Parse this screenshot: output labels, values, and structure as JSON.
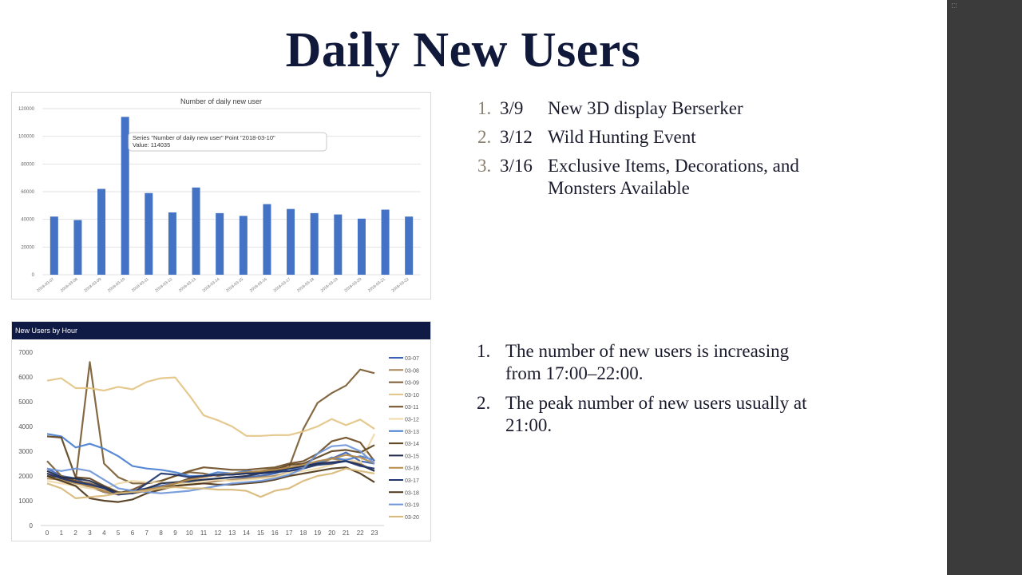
{
  "slide": {
    "title": "Daily New Users",
    "events": [
      {
        "num": "1.",
        "date": "3/9",
        "text": "New 3D display Berserker"
      },
      {
        "num": "2.",
        "date": "3/12",
        "text": "Wild Hunting Event"
      },
      {
        "num": "3.",
        "date": "3/16",
        "text": "Exclusive Items, Decorations, and Monsters Available"
      }
    ],
    "findings": [
      {
        "num": "1.",
        "text": "The number of new users is increasing from 17:00–22:00."
      },
      {
        "num": "2.",
        "text": "The peak number of new users usually at 21:00."
      }
    ]
  },
  "colors": {
    "sidebar": "#3b3b3b",
    "title": "#10193a",
    "bar": "#4472c4",
    "header_band": "#0f1b45"
  },
  "chart_data": [
    {
      "type": "bar",
      "title": "Number of daily new user",
      "categories": [
        "2018-03-07",
        "2018-03-08",
        "2018-03-09",
        "2018-03-10",
        "2018-03-11",
        "2018-03-12",
        "2018-03-13",
        "2018-03-14",
        "2018-03-15",
        "2018-03-16",
        "2018-03-17",
        "2018-03-18",
        "2018-03-19",
        "2018-03-20",
        "2018-03-21",
        "2018-03-22"
      ],
      "values": [
        42000,
        39500,
        62000,
        114035,
        59000,
        45000,
        63000,
        44500,
        42500,
        51000,
        47500,
        44500,
        43500,
        40500,
        47000,
        42000
      ],
      "ylim": [
        0,
        120000
      ],
      "yticks": [
        "0",
        "20000",
        "40000",
        "60000",
        "80000",
        "100000",
        "120000"
      ],
      "grid": true,
      "tooltip": {
        "line1": "Series \"Number of daily new user\" Point \"2018-03-10\"",
        "line2": "Value: 114035",
        "category_index": 3
      }
    },
    {
      "type": "line",
      "title": "New Users by Hour",
      "x": [
        "0",
        "1",
        "2",
        "3",
        "4",
        "5",
        "6",
        "7",
        "8",
        "9",
        "10",
        "11",
        "12",
        "13",
        "14",
        "15",
        "16",
        "17",
        "18",
        "19",
        "20",
        "21",
        "22",
        "23"
      ],
      "ylim": [
        0,
        7000
      ],
      "yticks": [
        "0",
        "1000",
        "2000",
        "3000",
        "4000",
        "5000",
        "6000",
        "7000"
      ],
      "legend_position": "right",
      "series": [
        {
          "name": "03-07",
          "color": "#3a63b5",
          "values": [
            2300,
            2000,
            1900,
            1600,
            1350,
            1250,
            1400,
            1500,
            1600,
            1700,
            1750,
            1850,
            1900,
            1950,
            1950,
            2000,
            2100,
            2300,
            2400,
            2550,
            2700,
            2950,
            2600,
            2500
          ]
        },
        {
          "name": "03-08",
          "color": "#a8865a",
          "values": [
            2100,
            1900,
            1750,
            1550,
            1350,
            1250,
            1350,
            1450,
            1500,
            1600,
            1650,
            1700,
            1800,
            1850,
            1900,
            1950,
            2000,
            2150,
            2350,
            2450,
            2700,
            2600,
            2500,
            2200
          ]
        },
        {
          "name": "03-09",
          "color": "#7a5c33",
          "values": [
            2600,
            2000,
            1800,
            6600,
            2500,
            1950,
            1700,
            1700,
            1800,
            2000,
            2150,
            2100,
            2000,
            2100,
            2150,
            2200,
            2300,
            2350,
            3900,
            4950,
            5350,
            5650,
            6300,
            6150
          ]
        },
        {
          "name": "03-10",
          "color": "#e3c486",
          "values": [
            5850,
            5950,
            5550,
            5550,
            5450,
            5600,
            5500,
            5800,
            5950,
            5980,
            5250,
            4450,
            4250,
            4000,
            3620,
            3620,
            3650,
            3650,
            3800,
            4000,
            4300,
            4050,
            4280,
            3900
          ]
        },
        {
          "name": "03-11",
          "color": "#6e4d24",
          "values": [
            2000,
            1950,
            1800,
            1700,
            1500,
            1300,
            1450,
            1700,
            1800,
            2000,
            2200,
            2350,
            2300,
            2250,
            2250,
            2300,
            2350,
            2500,
            2600,
            2900,
            3400,
            3550,
            3350,
            2600
          ]
        },
        {
          "name": "03-12",
          "color": "#efd9a8",
          "values": [
            1800,
            1700,
            1600,
            1500,
            1450,
            1700,
            1800,
            1750,
            1750,
            1700,
            1700,
            1800,
            1850,
            1800,
            1850,
            1900,
            1950,
            2150,
            2200,
            2300,
            2450,
            2700,
            2550,
            3700
          ]
        },
        {
          "name": "03-13",
          "color": "#4a7fd0",
          "values": [
            3700,
            3600,
            3150,
            3300,
            3100,
            2800,
            2400,
            2300,
            2250,
            2150,
            2000,
            2000,
            2150,
            2100,
            2200,
            2150,
            2200,
            2200,
            2400,
            2500,
            2750,
            2650,
            2800,
            2650
          ]
        },
        {
          "name": "03-14",
          "color": "#5e4421",
          "values": [
            3600,
            3550,
            1950,
            1900,
            1600,
            1350,
            1300,
            1400,
            1500,
            1700,
            1900,
            2000,
            2050,
            2050,
            2100,
            2150,
            2250,
            2450,
            2500,
            2750,
            3000,
            3050,
            2950,
            3250
          ]
        },
        {
          "name": "03-15",
          "color": "#1f2a4a",
          "values": [
            2200,
            1950,
            1900,
            1800,
            1550,
            1300,
            1300,
            1500,
            1700,
            1750,
            1800,
            1850,
            1900,
            1950,
            2000,
            2100,
            2200,
            2300,
            2400,
            2500,
            2550,
            2600,
            2450,
            2200
          ]
        },
        {
          "name": "03-16",
          "color": "#b58b4b",
          "values": [
            1900,
            1850,
            1700,
            1600,
            1400,
            1300,
            1350,
            1450,
            1550,
            1700,
            1850,
            1950,
            2050,
            2100,
            2150,
            2200,
            2250,
            2350,
            2450,
            2600,
            2700,
            2850,
            2750,
            2500
          ]
        },
        {
          "name": "03-17",
          "color": "#20356e",
          "values": [
            2100,
            1900,
            1750,
            1650,
            1500,
            1250,
            1300,
            1700,
            2100,
            2050,
            1950,
            2000,
            2050,
            2050,
            2100,
            2100,
            2150,
            2200,
            2300,
            2450,
            2500,
            2600,
            2400,
            2300
          ]
        },
        {
          "name": "03-18",
          "color": "#4d3618",
          "values": [
            2000,
            1800,
            1600,
            1100,
            1000,
            950,
            1050,
            1300,
            1450,
            1600,
            1650,
            1700,
            1650,
            1650,
            1700,
            1750,
            1850,
            2000,
            2100,
            2200,
            2300,
            2350,
            2100,
            1750
          ]
        },
        {
          "name": "03-19",
          "color": "#6f95d8",
          "values": [
            2300,
            2200,
            2300,
            2200,
            1850,
            1500,
            1400,
            1350,
            1300,
            1350,
            1400,
            1500,
            1600,
            1700,
            1750,
            1800,
            1900,
            2050,
            2300,
            2900,
            3200,
            3250,
            3000,
            2500
          ]
        },
        {
          "name": "03-20",
          "color": "#d8b878",
          "values": [
            1700,
            1500,
            1100,
            1150,
            1200,
            1300,
            1350,
            1400,
            1500,
            1550,
            1500,
            1500,
            1450,
            1450,
            1400,
            1150,
            1400,
            1500,
            1800,
            2000,
            2100,
            2300,
            2200,
            2100
          ]
        }
      ]
    }
  ]
}
